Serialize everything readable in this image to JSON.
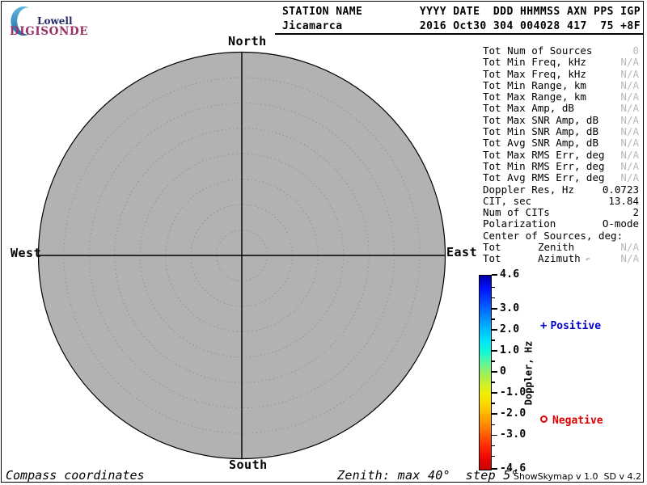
{
  "logo": {
    "line1": "Lowell",
    "line2": "DIGISONDE"
  },
  "header": {
    "left_title": "STATION NAME",
    "left_value": "Jicamarca",
    "right_title": "YYYY DATE  DDD HHMMSS AXN PPS IGP",
    "right_value": "2016 Oct30 304 004028 417  75 +8F"
  },
  "compass": {
    "north": "North",
    "south": "South",
    "east": "East",
    "west": "West"
  },
  "plot": {
    "zenith_max_deg": 40,
    "zenith_step_deg": 5,
    "fill_color": "#b2b2b2",
    "ring_dot_color": "#8f8f8f",
    "axis_color": "#000000"
  },
  "stats": {
    "rows": [
      {
        "label": "Tot Num of Sources",
        "mid": "",
        "value": "0",
        "dim": true
      },
      {
        "label": "Tot Min Freq, kHz",
        "mid": "",
        "value": "N/A",
        "dim": true
      },
      {
        "label": "Tot Max Freq, kHz",
        "mid": "",
        "value": "N/A",
        "dim": true
      },
      {
        "label": "Tot Min Range, km",
        "mid": "",
        "value": "N/A",
        "dim": true
      },
      {
        "label": "Tot Max Range, km",
        "mid": "",
        "value": "N/A",
        "dim": true
      },
      {
        "label": "Tot Max Amp, dB",
        "mid": "",
        "value": "N/A",
        "dim": true
      },
      {
        "label": "Tot Max SNR Amp, dB",
        "mid": "",
        "value": "N/A",
        "dim": true
      },
      {
        "label": "Tot Min SNR Amp, dB",
        "mid": "",
        "value": "N/A",
        "dim": true
      },
      {
        "label": "Tot Avg SNR Amp, dB",
        "mid": "",
        "value": "N/A",
        "dim": true
      },
      {
        "label": "Tot Max RMS Err, deg",
        "mid": "",
        "value": "N/A",
        "dim": true
      },
      {
        "label": "Tot Min RMS Err, deg",
        "mid": "",
        "value": "N/A",
        "dim": true
      },
      {
        "label": "Tot Avg RMS Err, deg",
        "mid": "",
        "value": "N/A",
        "dim": true
      },
      {
        "label": "Doppler Res, Hz",
        "mid": "",
        "value": "0.0723",
        "dim": false
      },
      {
        "label": "CIT, sec",
        "mid": "",
        "value": "13.84",
        "dim": false
      },
      {
        "label": "Num of CITs",
        "mid": "",
        "value": "2",
        "dim": false
      },
      {
        "label": "Polarization",
        "mid": "",
        "value": "O-mode",
        "dim": false
      },
      {
        "label": "Center of Sources, deg:",
        "mid": "",
        "value": "",
        "dim": false
      },
      {
        "label": "Tot",
        "mid": "Zenith",
        "value": "N/A",
        "dim": true
      },
      {
        "label": "Tot",
        "mid": "Azimuth",
        "note": "↶",
        "value": "N/A",
        "dim": true
      }
    ]
  },
  "colorbar": {
    "title": "Doppler, Hz",
    "max": 4.6,
    "min": -4.6,
    "major_ticks": [
      {
        "value": 4.6,
        "label": "4.6"
      },
      {
        "value": 3.0,
        "label": "3.0"
      },
      {
        "value": 2.0,
        "label": "2.0"
      },
      {
        "value": 1.0,
        "label": "1.0"
      },
      {
        "value": 0,
        "label": "0"
      },
      {
        "value": -1.0,
        "label": "-1.0"
      },
      {
        "value": -2.0,
        "label": "-2.0"
      },
      {
        "value": -3.0,
        "label": "-3.0"
      },
      {
        "value": -4.6,
        "label": "-4.6"
      }
    ],
    "minor_ticks": [
      4.0,
      3.5,
      2.5,
      1.5,
      0.5,
      -0.5,
      -1.5,
      -2.5,
      -3.5,
      -4.0
    ],
    "gradient": [
      {
        "value": 4.6,
        "color": "#0000a8"
      },
      {
        "value": 4.0,
        "color": "#0010ff"
      },
      {
        "value": 3.0,
        "color": "#0068ff"
      },
      {
        "value": 2.5,
        "color": "#0094ff"
      },
      {
        "value": 2.0,
        "color": "#00c0ff"
      },
      {
        "value": 1.5,
        "color": "#00e4f8"
      },
      {
        "value": 1.0,
        "color": "#10f8d8"
      },
      {
        "value": 0.5,
        "color": "#58f8a0"
      },
      {
        "value": 0.0,
        "color": "#98f060"
      },
      {
        "value": -0.5,
        "color": "#c8f030"
      },
      {
        "value": -1.0,
        "color": "#f0f000"
      },
      {
        "value": -1.5,
        "color": "#ffd800"
      },
      {
        "value": -2.0,
        "color": "#ffb000"
      },
      {
        "value": -2.5,
        "color": "#ff8800"
      },
      {
        "value": -3.0,
        "color": "#ff5800"
      },
      {
        "value": -3.5,
        "color": "#ff2800"
      },
      {
        "value": -4.0,
        "color": "#f00800"
      },
      {
        "value": -4.6,
        "color": "#c80000"
      }
    ]
  },
  "legend": {
    "positive_label": "Positive",
    "negative_label": "Negative",
    "positive_color": "#0000d0",
    "negative_color": "#dd0000"
  },
  "footer": {
    "left": "Compass coordinates",
    "center": "Zenith: max 40°  step 5°",
    "right": "ShowSkymap v 1.0  SD v 4.2"
  }
}
